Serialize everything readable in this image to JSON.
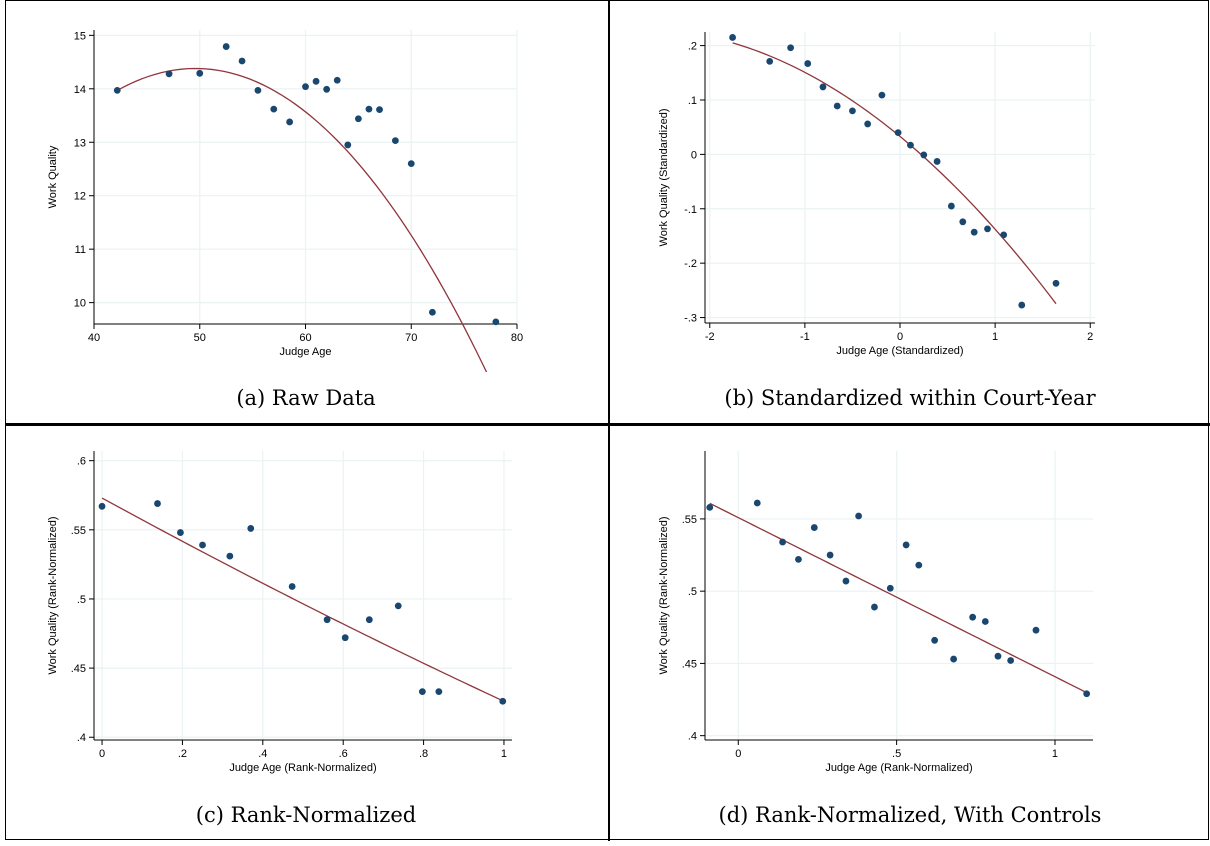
{
  "chart_data": [
    {
      "type": "scatter",
      "caption": "(a) Raw Data",
      "xlabel": "Judge Age",
      "ylabel": "Work Quality",
      "xlim": [
        40,
        80
      ],
      "ylim": [
        9.6,
        15.1
      ],
      "xticks": [
        40,
        50,
        60,
        70,
        80
      ],
      "xtick_labels": [
        "40",
        "50",
        "60",
        "70",
        "80"
      ],
      "yticks": [
        10,
        11,
        12,
        13,
        14,
        15
      ],
      "ytick_labels": [
        "10",
        "11",
        "12",
        "13",
        "14",
        "15"
      ],
      "grid": true,
      "points": [
        [
          42.2,
          13.97
        ],
        [
          47.1,
          14.28
        ],
        [
          50.0,
          14.29
        ],
        [
          52.5,
          14.79
        ],
        [
          54.0,
          14.52
        ],
        [
          55.5,
          13.97
        ],
        [
          57.0,
          13.62
        ],
        [
          58.5,
          13.38
        ],
        [
          60.0,
          14.04
        ],
        [
          61.0,
          14.14
        ],
        [
          62.0,
          13.99
        ],
        [
          63.0,
          14.16
        ],
        [
          64.0,
          12.95
        ],
        [
          65.0,
          13.44
        ],
        [
          66.0,
          13.62
        ],
        [
          67.0,
          13.61
        ],
        [
          68.5,
          13.03
        ],
        [
          70.0,
          12.6
        ],
        [
          72.0,
          9.82
        ],
        [
          78.0,
          9.64
        ]
      ],
      "fit": {
        "type": "quadratic",
        "x_range": [
          42.2,
          78.0
        ],
        "a": -0.0075,
        "h": 49.6,
        "k": 14.38
      }
    },
    {
      "type": "scatter",
      "caption": "(b) Standardized within Court-Year",
      "xlabel": "Judge Age (Standardized)",
      "ylabel": "Work Quality (Standardized)",
      "xlim": [
        -2.05,
        2.05
      ],
      "ylim": [
        -0.31,
        0.225
      ],
      "xticks": [
        -2,
        -1,
        0,
        1,
        2
      ],
      "xtick_labels": [
        "-2",
        "-1",
        "0",
        "1",
        "2"
      ],
      "yticks": [
        -0.3,
        -0.2,
        -0.1,
        0,
        0.1,
        0.2
      ],
      "ytick_labels": [
        "-.3",
        "-.2",
        "-.1",
        "0",
        ".1",
        ".2"
      ],
      "grid": true,
      "points": [
        [
          -1.76,
          0.215
        ],
        [
          -1.37,
          0.171
        ],
        [
          -1.15,
          0.196
        ],
        [
          -0.97,
          0.167
        ],
        [
          -0.81,
          0.124
        ],
        [
          -0.66,
          0.089
        ],
        [
          -0.5,
          0.08
        ],
        [
          -0.34,
          0.056
        ],
        [
          -0.19,
          0.109
        ],
        [
          -0.02,
          0.04
        ],
        [
          0.11,
          0.017
        ],
        [
          0.25,
          -0.001
        ],
        [
          0.39,
          -0.013
        ],
        [
          0.54,
          -0.095
        ],
        [
          0.66,
          -0.124
        ],
        [
          0.78,
          -0.143
        ],
        [
          0.92,
          -0.137
        ],
        [
          1.09,
          -0.148
        ],
        [
          1.28,
          -0.277
        ],
        [
          1.64,
          -0.237
        ]
      ],
      "fit": {
        "type": "quadratic",
        "x_range": [
          -1.76,
          1.64
        ],
        "a": -0.0264,
        "b": -0.1442,
        "c": 0.033
      }
    },
    {
      "type": "scatter",
      "caption": "(c) Rank-Normalized",
      "xlabel": "Judge Age (Rank-Normalized)",
      "ylabel": "Work Quality (Rank-Normalized)",
      "xlim": [
        -0.02,
        1.02
      ],
      "ylim": [
        0.398,
        0.607
      ],
      "xticks": [
        0,
        0.2,
        0.4,
        0.6,
        0.8,
        1
      ],
      "xtick_labels": [
        "0",
        ".2",
        ".4",
        ".6",
        ".8",
        "1"
      ],
      "yticks": [
        0.4,
        0.45,
        0.5,
        0.55,
        0.6
      ],
      "ytick_labels": [
        ".4",
        ".45",
        ".5",
        ".55",
        ".6"
      ],
      "grid": true,
      "points": [
        [
          0.0,
          0.567
        ],
        [
          0.138,
          0.569
        ],
        [
          0.195,
          0.548
        ],
        [
          0.25,
          0.539
        ],
        [
          0.318,
          0.531
        ],
        [
          0.37,
          0.551
        ],
        [
          0.473,
          0.509
        ],
        [
          0.56,
          0.485
        ],
        [
          0.605,
          0.472
        ],
        [
          0.665,
          0.485
        ],
        [
          0.737,
          0.495
        ],
        [
          0.797,
          0.433
        ],
        [
          0.838,
          0.433
        ],
        [
          0.997,
          0.426
        ]
      ],
      "fit": {
        "type": "quadratic",
        "x_range": [
          0.0,
          1.0
        ],
        "a": 0.012,
        "b": -0.159,
        "c": 0.573
      }
    },
    {
      "type": "scatter",
      "caption": "(d) Rank-Normalized, With Controls",
      "xlabel": "Judge Age (Rank-Normalized)",
      "ylabel": "Work Quality (Rank-Normalized)",
      "xlim": [
        -0.105,
        1.12
      ],
      "ylim": [
        0.397,
        0.597
      ],
      "xticks": [
        0,
        0.5,
        1
      ],
      "xtick_labels": [
        "0",
        ".5",
        "1"
      ],
      "yticks": [
        0.4,
        0.45,
        0.5,
        0.55
      ],
      "ytick_labels": [
        ".4",
        ".45",
        ".5",
        ".55"
      ],
      "grid": true,
      "points": [
        [
          -0.09,
          0.558
        ],
        [
          0.06,
          0.561
        ],
        [
          0.14,
          0.534
        ],
        [
          0.19,
          0.522
        ],
        [
          0.24,
          0.544
        ],
        [
          0.29,
          0.525
        ],
        [
          0.34,
          0.507
        ],
        [
          0.38,
          0.552
        ],
        [
          0.43,
          0.489
        ],
        [
          0.48,
          0.502
        ],
        [
          0.53,
          0.532
        ],
        [
          0.57,
          0.518
        ],
        [
          0.62,
          0.466
        ],
        [
          0.68,
          0.453
        ],
        [
          0.74,
          0.482
        ],
        [
          0.78,
          0.479
        ],
        [
          0.82,
          0.455
        ],
        [
          0.86,
          0.452
        ],
        [
          0.94,
          0.473
        ],
        [
          1.1,
          0.429
        ]
      ],
      "fit": {
        "type": "quadratic",
        "x_range": [
          -0.09,
          1.1
        ],
        "a": 0.0,
        "b": -0.1101,
        "c": 0.5509
      }
    }
  ],
  "colors": {
    "marker": "#1a476f",
    "fit": "#90353b",
    "grid": "#eaf2f3",
    "axis": "#000000"
  }
}
